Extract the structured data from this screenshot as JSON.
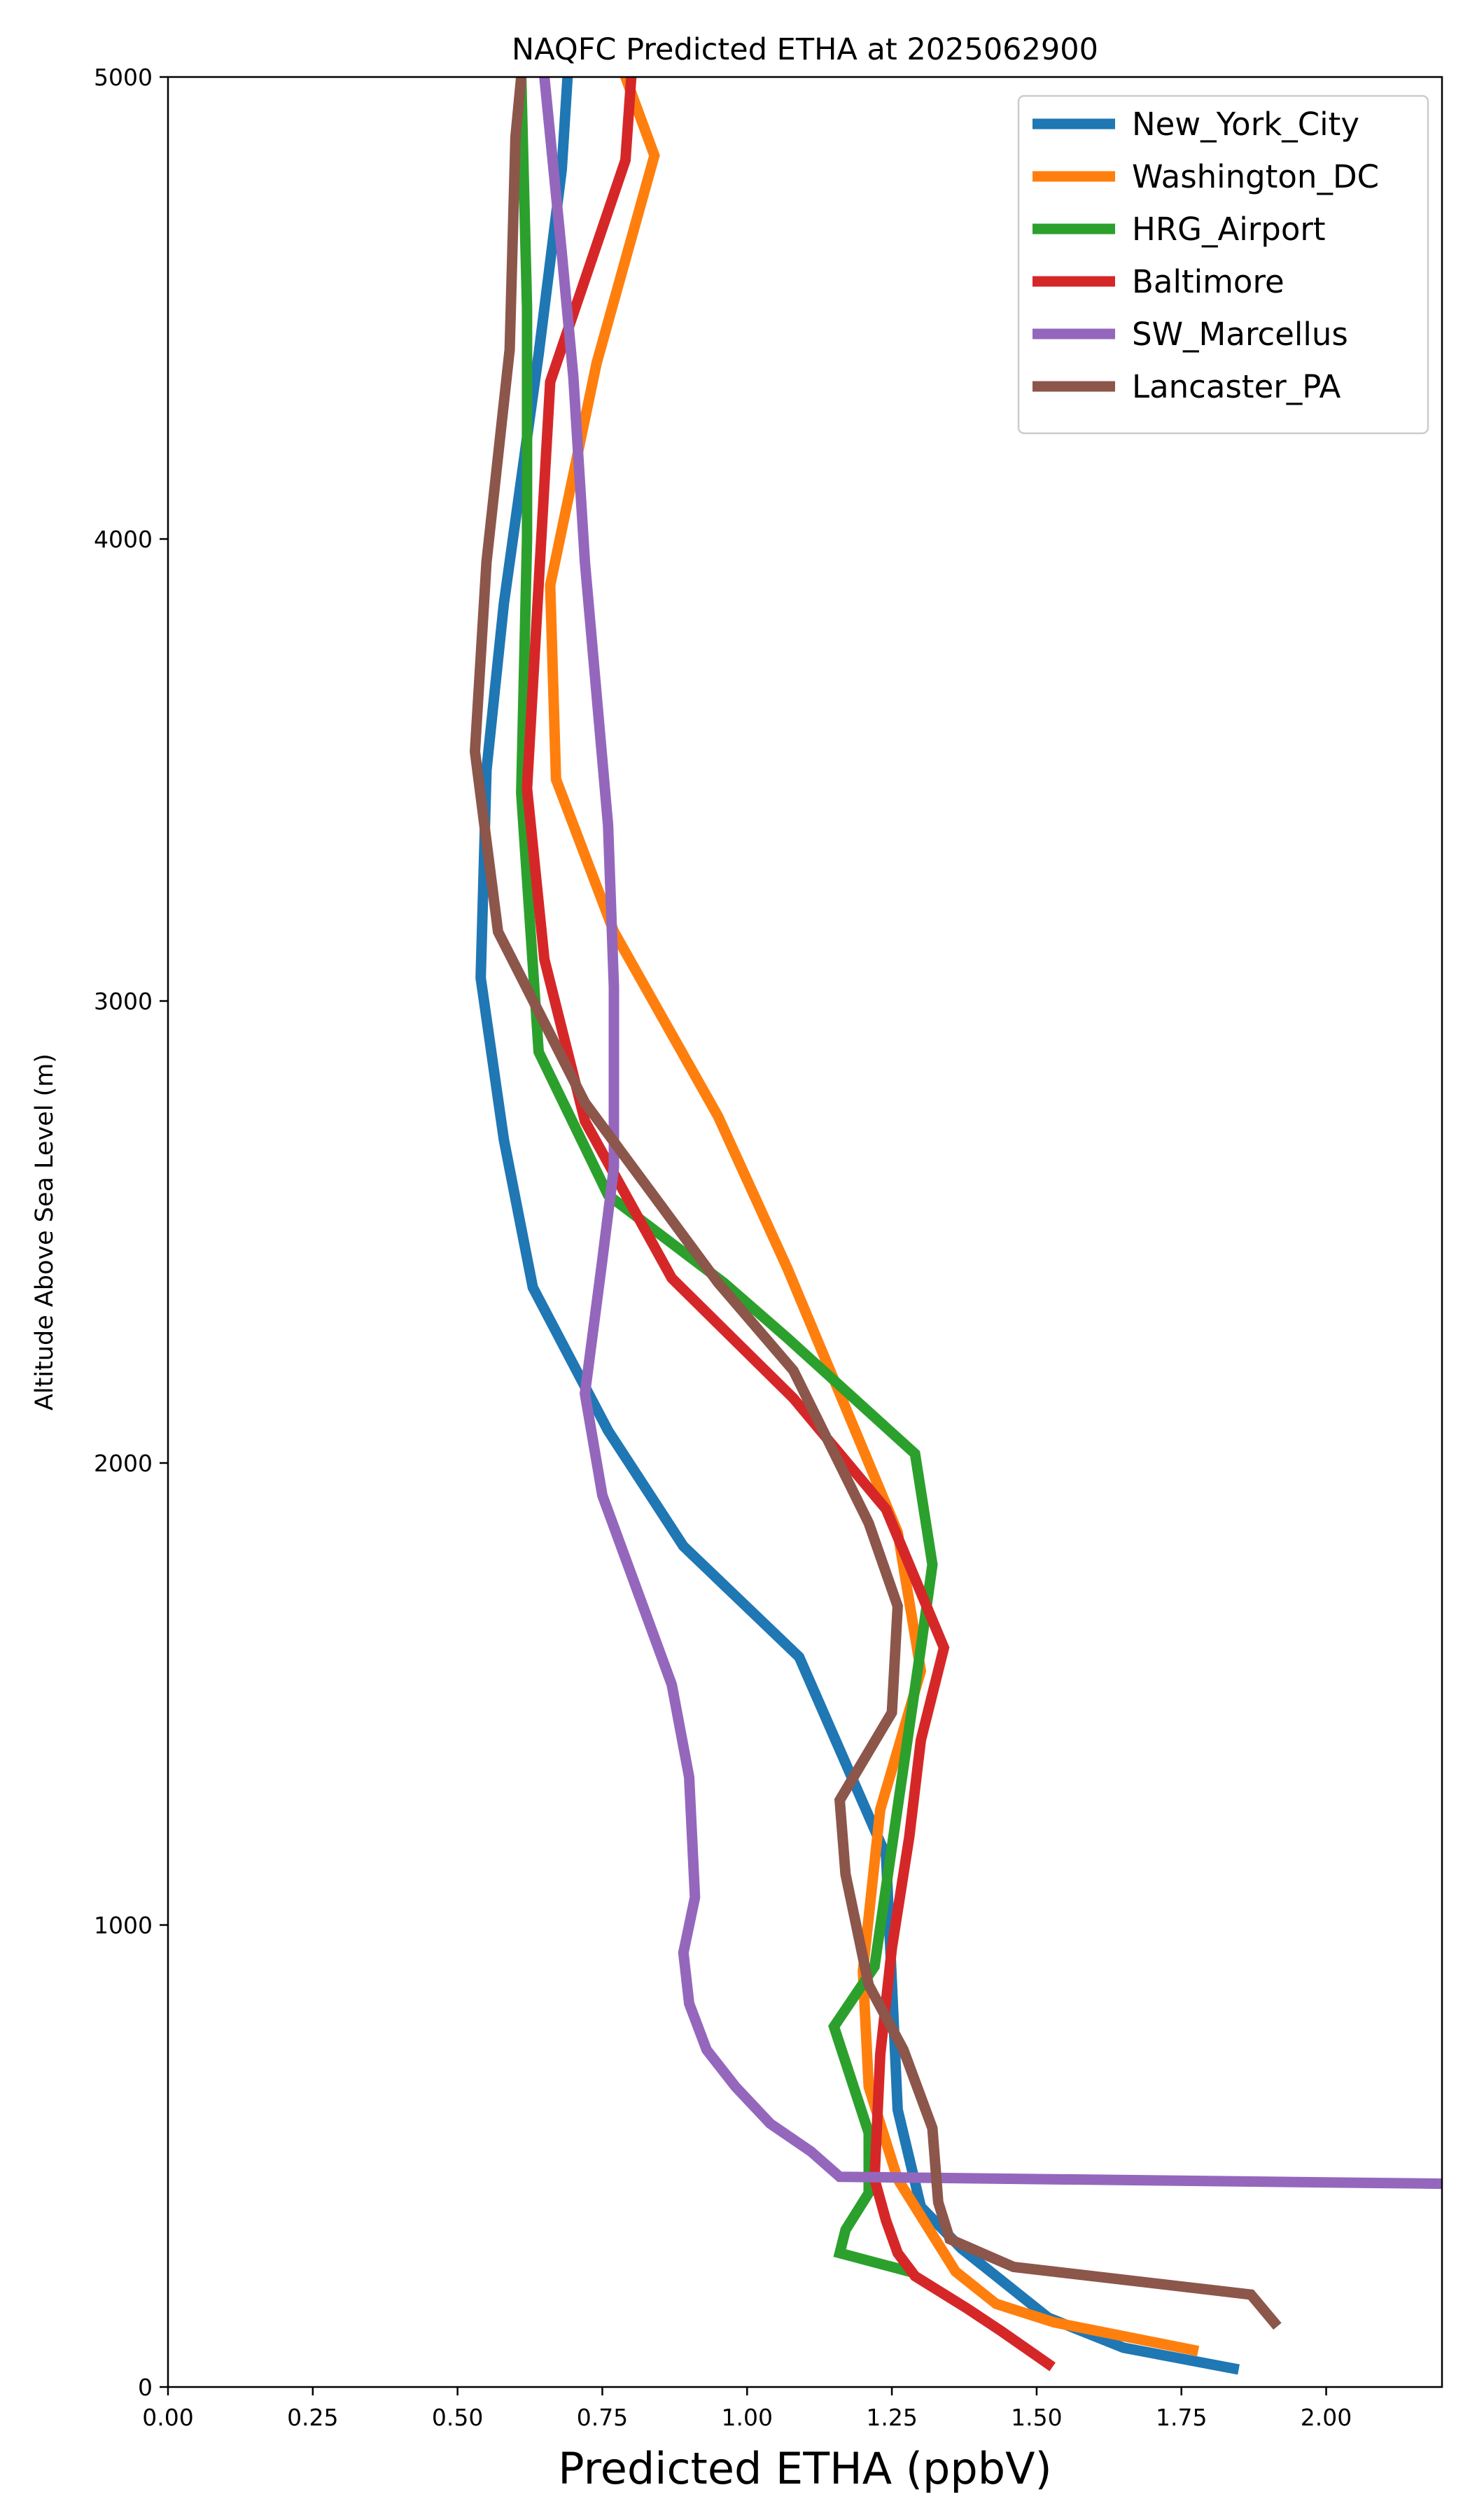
{
  "chart_data": {
    "type": "line",
    "title": "NAQFC Predicted ETHA at 2025062900",
    "xlabel": "Predicted ETHA (ppbV)",
    "ylabel": "Altitude Above Sea Level (m)",
    "xlim": [
      0,
      2.2
    ],
    "ylim": [
      0,
      5000
    ],
    "xticks": [
      "0.00",
      "0.25",
      "0.50",
      "0.75",
      "1.00",
      "1.25",
      "1.50",
      "1.75",
      "2.00"
    ],
    "yticks": [
      "0",
      "1000",
      "2000",
      "3000",
      "4000",
      "5000"
    ],
    "xtick_values": [
      0,
      0.25,
      0.5,
      0.75,
      1.0,
      1.25,
      1.5,
      1.75,
      2.0
    ],
    "ytick_values": [
      0,
      1000,
      2000,
      3000,
      4000,
      5000
    ],
    "grid": false,
    "legend_position": "top-right",
    "series": [
      {
        "name": "New_York_City",
        "color": "#1f77b4",
        "points": [
          [
            1.84,
            40
          ],
          [
            1.65,
            85
          ],
          [
            1.52,
            150
          ],
          [
            1.37,
            300
          ],
          [
            1.3,
            390
          ],
          [
            1.26,
            600
          ],
          [
            1.24,
            1150
          ],
          [
            1.09,
            1580
          ],
          [
            0.89,
            1820
          ],
          [
            0.76,
            2070
          ],
          [
            0.63,
            2380
          ],
          [
            0.58,
            2700
          ],
          [
            0.54,
            3050
          ],
          [
            0.55,
            3500
          ],
          [
            0.58,
            3860
          ],
          [
            0.64,
            4400
          ],
          [
            0.68,
            4800
          ],
          [
            0.69,
            5000
          ]
        ]
      },
      {
        "name": "Washington_DC",
        "color": "#ff7f0e",
        "points": [
          [
            1.77,
            80
          ],
          [
            1.53,
            140
          ],
          [
            1.43,
            180
          ],
          [
            1.36,
            250
          ],
          [
            1.31,
            350
          ],
          [
            1.26,
            450
          ],
          [
            1.21,
            650
          ],
          [
            1.2,
            900
          ],
          [
            1.23,
            1250
          ],
          [
            1.3,
            1550
          ],
          [
            1.26,
            1850
          ],
          [
            1.07,
            2420
          ],
          [
            0.95,
            2750
          ],
          [
            0.77,
            3150
          ],
          [
            0.67,
            3480
          ],
          [
            0.66,
            3900
          ],
          [
            0.74,
            4380
          ],
          [
            0.84,
            4830
          ],
          [
            0.79,
            5000
          ]
        ]
      },
      {
        "name": "HRG_Airport",
        "color": "#2ca02c",
        "points": [
          [
            1.28,
            250
          ],
          [
            1.16,
            290
          ],
          [
            1.17,
            340
          ],
          [
            1.21,
            420
          ],
          [
            1.21,
            550
          ],
          [
            1.15,
            780
          ],
          [
            1.22,
            910
          ],
          [
            1.3,
            1600
          ],
          [
            1.32,
            1780
          ],
          [
            1.29,
            2020
          ],
          [
            1.07,
            2270
          ],
          [
            0.96,
            2390
          ],
          [
            0.76,
            2580
          ],
          [
            0.64,
            2890
          ],
          [
            0.61,
            3450
          ],
          [
            0.62,
            4000
          ],
          [
            0.62,
            4500
          ],
          [
            0.61,
            5000
          ]
        ]
      },
      {
        "name": "Baltimore",
        "color": "#d62728",
        "points": [
          [
            1.52,
            50
          ],
          [
            1.44,
            120
          ],
          [
            1.38,
            170
          ],
          [
            1.29,
            240
          ],
          [
            1.26,
            290
          ],
          [
            1.24,
            360
          ],
          [
            1.22,
            450
          ],
          [
            1.23,
            720
          ],
          [
            1.25,
            950
          ],
          [
            1.28,
            1190
          ],
          [
            1.3,
            1400
          ],
          [
            1.34,
            1600
          ],
          [
            1.24,
            1900
          ],
          [
            1.08,
            2140
          ],
          [
            0.87,
            2400
          ],
          [
            0.72,
            2740
          ],
          [
            0.65,
            3090
          ],
          [
            0.62,
            3460
          ],
          [
            0.66,
            4340
          ],
          [
            0.79,
            4820
          ],
          [
            0.8,
            5000
          ]
        ]
      },
      {
        "name": "SW_Marcellus",
        "color": "#9467bd",
        "points": [
          [
            2.2,
            440
          ],
          [
            1.16,
            455
          ],
          [
            1.11,
            510
          ],
          [
            1.04,
            570
          ],
          [
            0.98,
            650
          ],
          [
            0.93,
            730
          ],
          [
            0.9,
            830
          ],
          [
            0.89,
            940
          ],
          [
            0.91,
            1060
          ],
          [
            0.9,
            1320
          ],
          [
            0.87,
            1520
          ],
          [
            0.75,
            1930
          ],
          [
            0.72,
            2150
          ],
          [
            0.75,
            2440
          ],
          [
            0.77,
            2640
          ],
          [
            0.77,
            3030
          ],
          [
            0.76,
            3380
          ],
          [
            0.72,
            3950
          ],
          [
            0.7,
            4350
          ],
          [
            0.68,
            4620
          ],
          [
            0.65,
            5000
          ]
        ]
      },
      {
        "name": "Lancaster_PA",
        "color": "#8c564b",
        "points": [
          [
            1.91,
            140
          ],
          [
            1.87,
            200
          ],
          [
            1.46,
            260
          ],
          [
            1.35,
            320
          ],
          [
            1.33,
            400
          ],
          [
            1.32,
            560
          ],
          [
            1.27,
            730
          ],
          [
            1.21,
            870
          ],
          [
            1.17,
            1110
          ],
          [
            1.16,
            1270
          ],
          [
            1.25,
            1460
          ],
          [
            1.26,
            1690
          ],
          [
            1.21,
            1870
          ],
          [
            1.08,
            2200
          ],
          [
            0.95,
            2390
          ],
          [
            0.72,
            2780
          ],
          [
            0.57,
            3150
          ],
          [
            0.53,
            3540
          ],
          [
            0.55,
            3950
          ],
          [
            0.59,
            4410
          ],
          [
            0.6,
            4870
          ],
          [
            0.61,
            5000
          ]
        ]
      }
    ]
  }
}
